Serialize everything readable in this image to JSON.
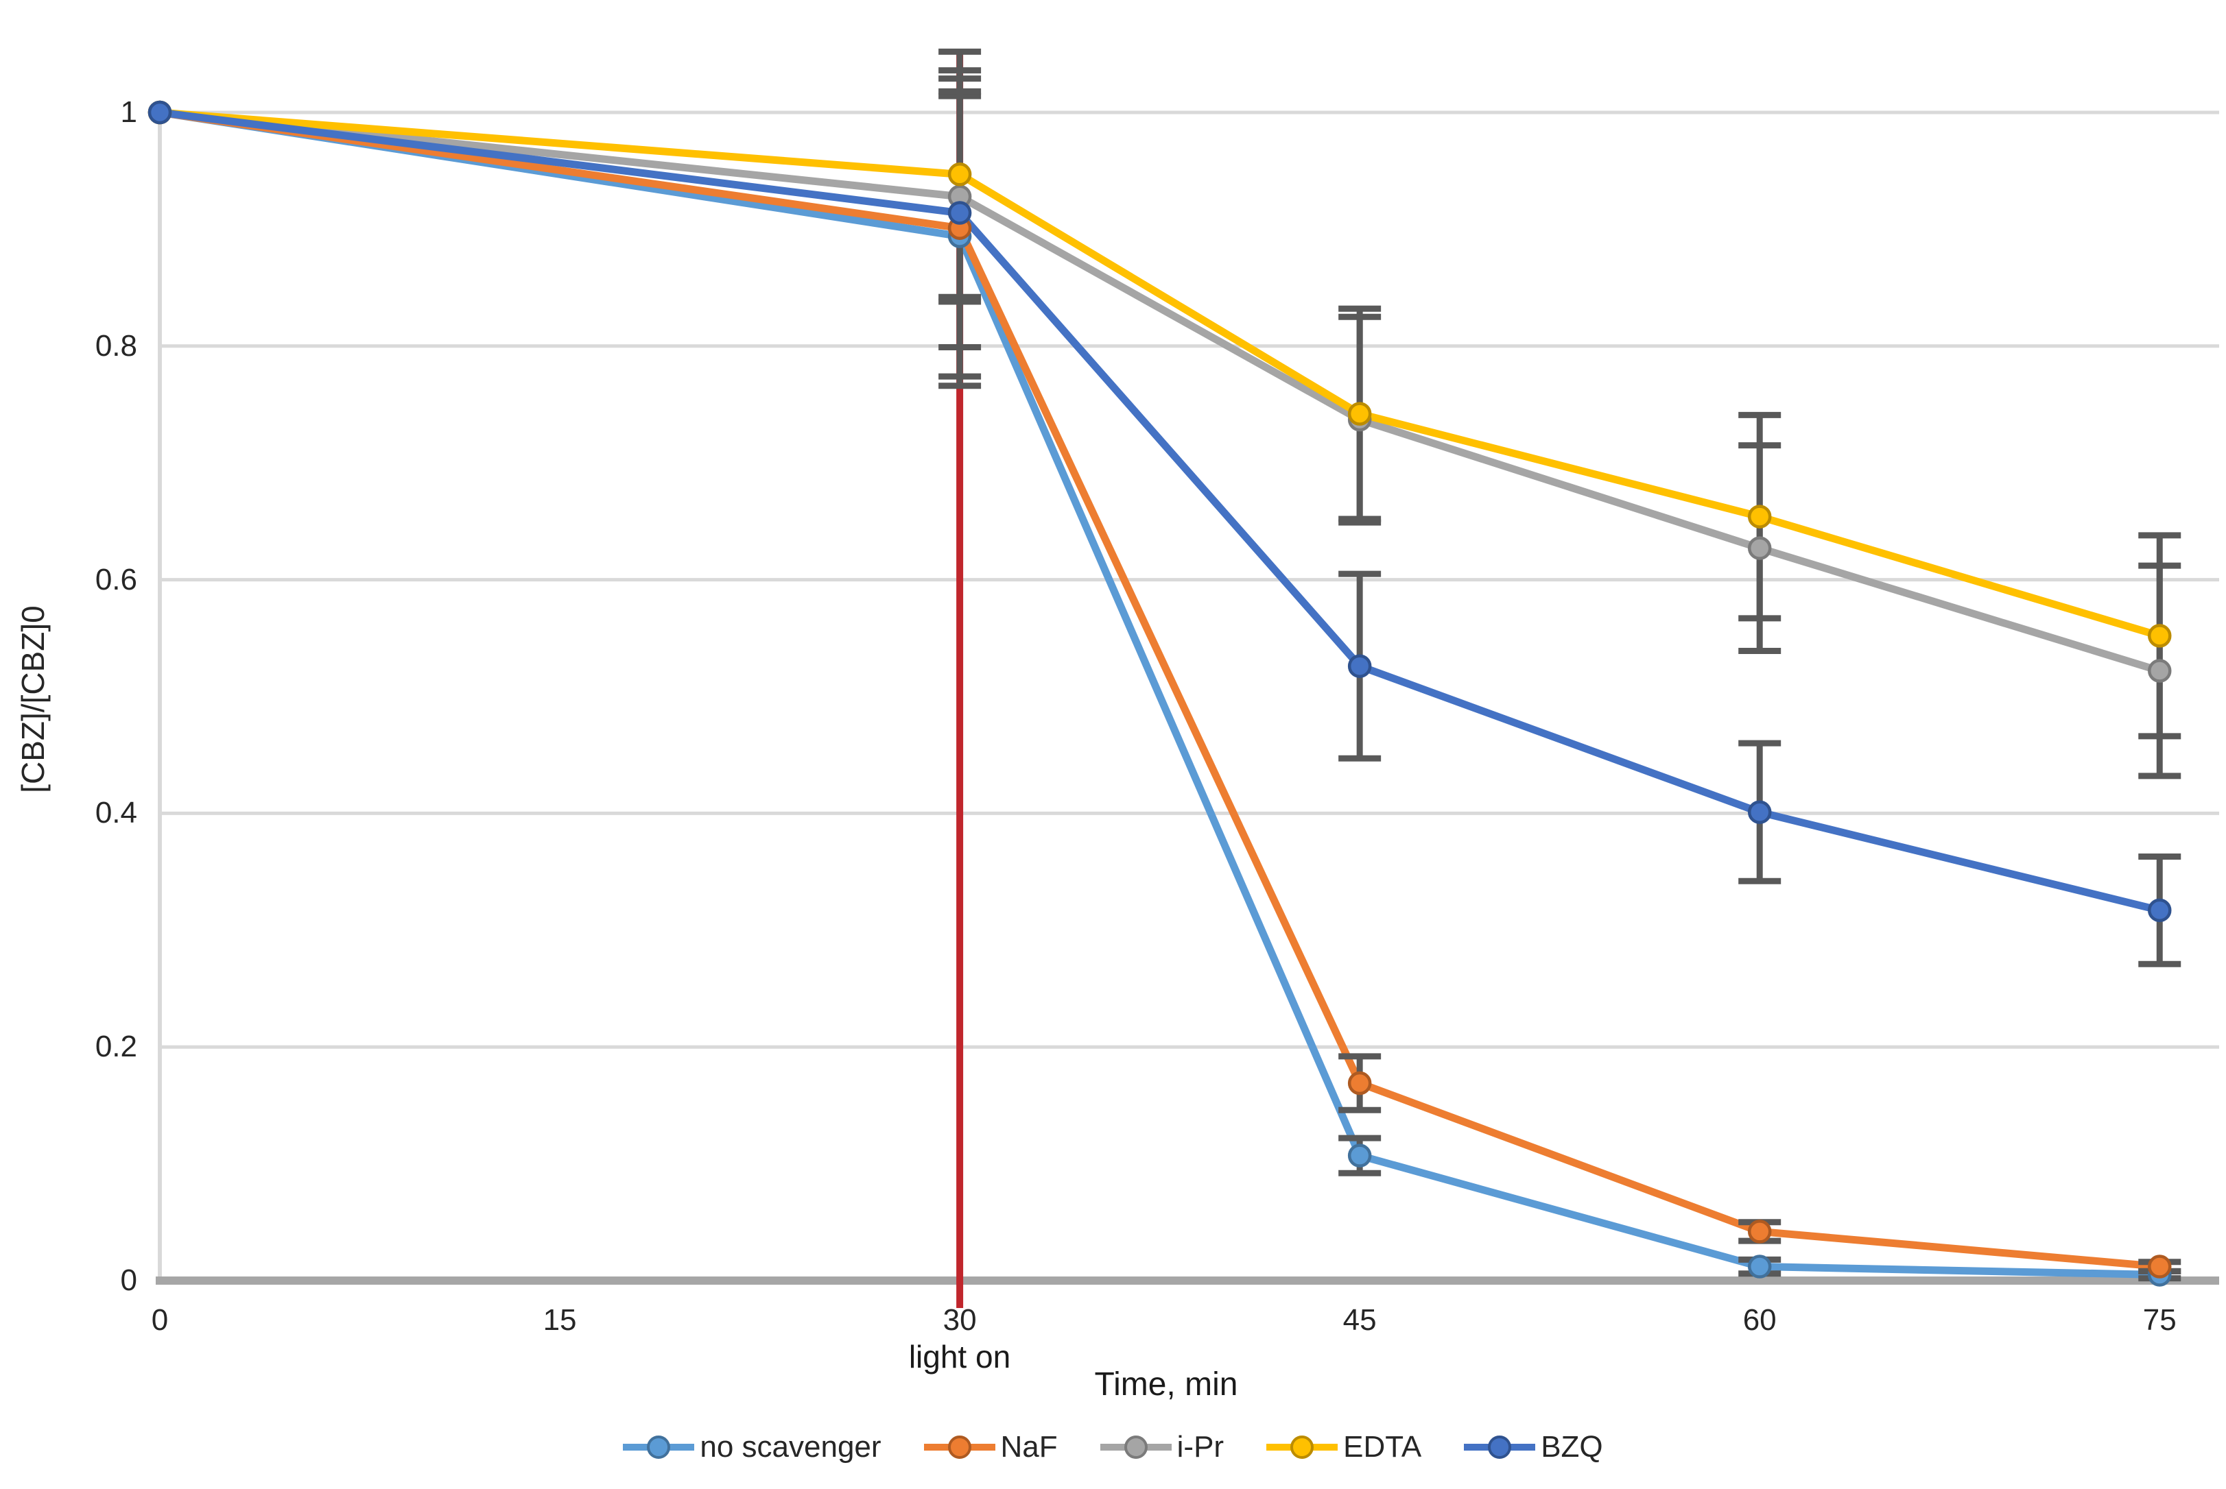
{
  "chart_data": {
    "type": "line",
    "title": "",
    "xlabel": "Time, min",
    "ylabel": "[CBZ]/[CBZ]0",
    "x": [
      0,
      30,
      45,
      60,
      75
    ],
    "x_tick_values": [
      0,
      15,
      30,
      45,
      60,
      75
    ],
    "x_tick_labels": [
      "0",
      "15",
      "30",
      "45",
      "60",
      "75"
    ],
    "y_tick_values": [
      1,
      0.8,
      0.6,
      0.4,
      0.2,
      0
    ],
    "y_tick_labels": [
      "1",
      "0.8",
      "0.6",
      "0.4",
      "0.2",
      "0"
    ],
    "xlim": [
      0,
      77.5
    ],
    "ylim": [
      0,
      1.06
    ],
    "grid": "horizontal",
    "legend_position": "bottom",
    "background_color": "#FFFFFF",
    "gridline_color": "#D9D9D9",
    "axis_line_color": "#A6A6A6",
    "y_axis_line_color": "#D9D9D9",
    "error_bar_color": "#595959",
    "annotation": {
      "type": "vertical-line",
      "label": "light on",
      "x": 30,
      "color": "#C0262C"
    },
    "series": [
      {
        "name": "no scavenger",
        "color": "#5B9BD5",
        "marker_border": "#41719C",
        "values": [
          1.0,
          0.894,
          0.107,
          0.012,
          0.005
        ],
        "errors": [
          0,
          0.12,
          0.015,
          0.006,
          0.003
        ]
      },
      {
        "name": "NaF",
        "color": "#ED7D31",
        "marker_border": "#AE5A21",
        "values": [
          1.0,
          0.901,
          0.169,
          0.042,
          0.012
        ],
        "errors": [
          0,
          0.135,
          0.023,
          0.008,
          0.004
        ]
      },
      {
        "name": "i-Pr",
        "color": "#A5A5A5",
        "marker_border": "#7B7B7B",
        "values": [
          1.0,
          0.928,
          0.737,
          0.627,
          0.522
        ],
        "errors": [
          0,
          0.09,
          0.088,
          0.088,
          0.09
        ]
      },
      {
        "name": "EDTA",
        "color": "#FFC000",
        "marker_border": "#BC8C00",
        "values": [
          1.0,
          0.947,
          0.742,
          0.654,
          0.552
        ],
        "errors": [
          0,
          0.105,
          0.09,
          0.087,
          0.086
        ]
      },
      {
        "name": "BZQ",
        "color": "#4472C4",
        "marker_border": "#2F528F",
        "values": [
          1.0,
          0.914,
          0.526,
          0.401,
          0.317
        ],
        "errors": [
          0,
          0.115,
          0.079,
          0.059,
          0.046
        ]
      }
    ]
  }
}
